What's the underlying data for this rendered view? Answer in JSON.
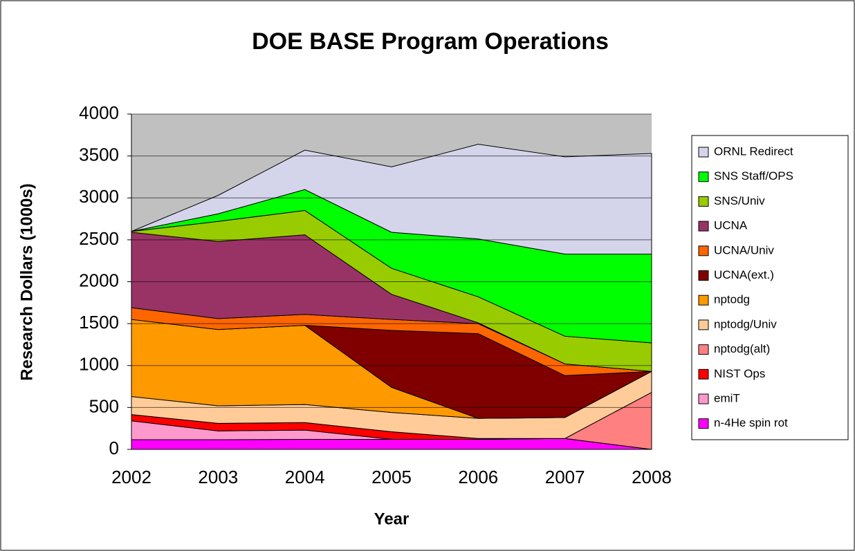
{
  "chart_data": {
    "type": "stacked-area",
    "title": "DOE BASE Program Operations",
    "x_label": "Year",
    "y_label": "Research Dollars (1000s)",
    "categories": [
      "2002",
      "2003",
      "2004",
      "2005",
      "2006",
      "2007",
      "2008"
    ],
    "ylim": [
      0,
      4000
    ],
    "yticks": [
      0,
      500,
      1000,
      1500,
      2000,
      2500,
      3000,
      3500,
      4000
    ],
    "grid": true,
    "legend_position": "right",
    "series": [
      {
        "name": "n-4He spin rot",
        "color": "#ff00ff",
        "values": [
          115,
          115,
          120,
          120,
          120,
          130,
          0
        ]
      },
      {
        "name": "emiT",
        "color": "#ff99cc",
        "values": [
          225,
          105,
          110,
          0,
          0,
          0,
          0
        ]
      },
      {
        "name": "NIST Ops",
        "color": "#ff0000",
        "values": [
          75,
          90,
          90,
          90,
          10,
          0,
          0
        ]
      },
      {
        "name": "nptodg(alt)",
        "color": "#ff8080",
        "values": [
          0,
          0,
          0,
          0,
          0,
          0,
          680
        ]
      },
      {
        "name": "nptodg/Univ",
        "color": "#ffcc99",
        "values": [
          215,
          210,
          215,
          230,
          240,
          250,
          250
        ]
      },
      {
        "name": "nptodg",
        "color": "#ff9900",
        "values": [
          920,
          910,
          945,
          300,
          0,
          0,
          0
        ]
      },
      {
        "name": "UCNA(ext.)",
        "color": "#800000",
        "values": [
          0,
          0,
          0,
          680,
          1010,
          500,
          0
        ]
      },
      {
        "name": "UCNA/Univ",
        "color": "#ff6600",
        "values": [
          140,
          130,
          130,
          130,
          120,
          140,
          0
        ]
      },
      {
        "name": "UCNA",
        "color": "#993366",
        "values": [
          900,
          920,
          950,
          300,
          10,
          0,
          0
        ]
      },
      {
        "name": "SNS/Univ",
        "color": "#99cc00",
        "values": [
          10,
          240,
          290,
          310,
          310,
          330,
          340
        ]
      },
      {
        "name": "SNS Staff/OPS",
        "color": "#00ff00",
        "values": [
          0,
          90,
          250,
          430,
          690,
          980,
          1060
        ]
      },
      {
        "name": "ORNL Redirect",
        "color": "#d4d4ea",
        "values": [
          0,
          220,
          470,
          780,
          1130,
          1160,
          1200
        ]
      }
    ]
  }
}
